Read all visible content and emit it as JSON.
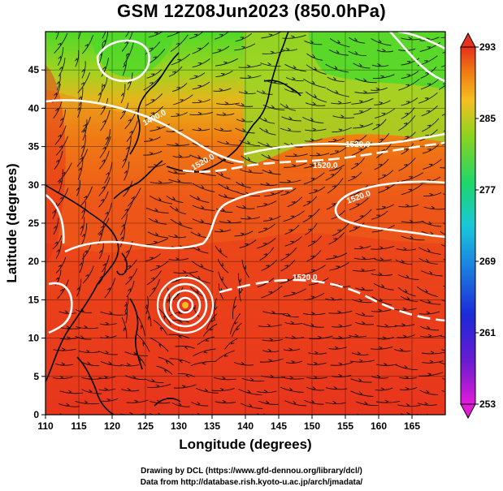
{
  "title": "GSM 12Z08Jun2023 (850.0hPa)",
  "credits": {
    "line1": "Drawing by DCL (https://www.gfd-dennou.org/library/dcl/)",
    "line2": "Data from http://database.rish.kyoto-u.ac.jp/arch/jmadata/"
  },
  "map": {
    "xlabel": "Longitude (degrees)",
    "ylabel": "Latitude  (degrees)",
    "lon_range": [
      110,
      170
    ],
    "lat_range": [
      0,
      50
    ],
    "lon_ticks": [
      "110",
      "115",
      "120",
      "125",
      "130",
      "135",
      "140",
      "145",
      "150",
      "155",
      "160",
      "165"
    ],
    "lat_ticks": [
      "0",
      "5",
      "10",
      "15",
      "20",
      "25",
      "30",
      "35",
      "40",
      "45"
    ],
    "contour_labels": [
      "1400.0",
      "1520.0",
      "1520.0",
      "1520.0",
      "1520.0",
      "1520.0"
    ]
  },
  "colorbar": {
    "min": 253,
    "max": 293,
    "tick_labels": [
      "293",
      "285",
      "277",
      "269",
      "261",
      "253"
    ]
  },
  "colors": {
    "hot": "#e8311c",
    "warm": "#f07a12",
    "mid": "#f4c020",
    "cool": "#3fd62a",
    "cold": "#19c8d8",
    "colder": "#2050e0",
    "coldest": "#e21bd9"
  }
}
